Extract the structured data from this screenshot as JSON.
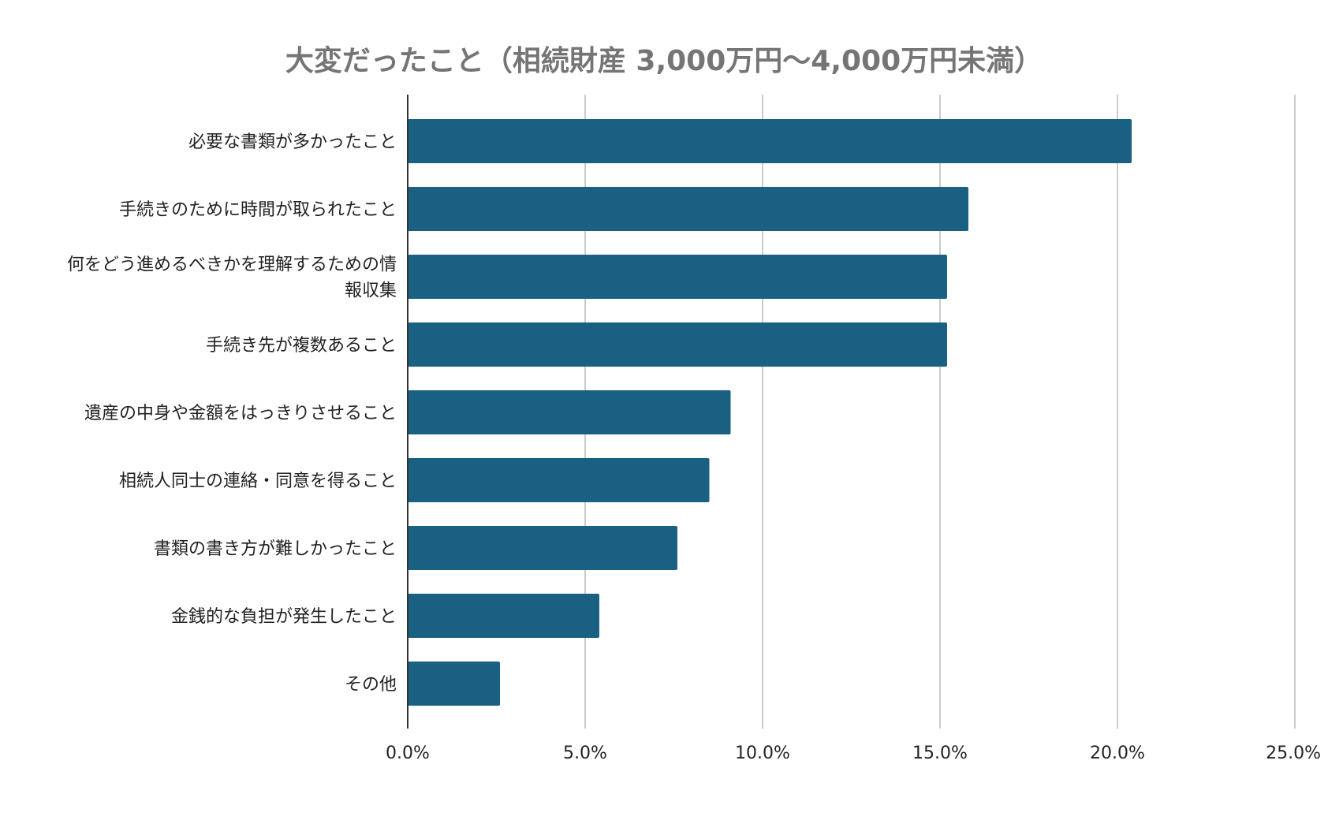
{
  "chart_data": {
    "type": "bar",
    "orientation": "horizontal",
    "title": "大変だったこと（相続財産 3,000万円〜4,000万円未満）",
    "categories": [
      "必要な書類が多かったこと",
      "手続きのために時間が取られたこと",
      "何をどう進めるべきかを理解するための情報収集",
      "手続き先が複数あること",
      "遺産の中身や金額をはっきりさせること",
      "相続人同士の連絡・同意を得ること",
      "書類の書き方が難しかったこと",
      "金銭的な負担が発生したこと",
      "その他"
    ],
    "category_label_lines": [
      [
        "必要な書類が多かったこと"
      ],
      [
        "手続きのために時間が取られたこと"
      ],
      [
        "何をどう進めるべきかを理解するための情",
        "報収集"
      ],
      [
        "手続き先が複数あること"
      ],
      [
        "遺産の中身や金額をはっきりさせること"
      ],
      [
        "相続人同士の連絡・同意を得ること"
      ],
      [
        "書類の書き方が難しかったこと"
      ],
      [
        "金銭的な負担が発生したこと"
      ],
      [
        "その他"
      ]
    ],
    "values": [
      20.4,
      15.8,
      15.2,
      15.2,
      9.1,
      8.5,
      7.6,
      5.4,
      2.6
    ],
    "xlim": [
      0,
      25
    ],
    "xticks": [
      0,
      5,
      10,
      15,
      20,
      25
    ],
    "xtick_labels": [
      "0.0%",
      "5.0%",
      "10.0%",
      "15.0%",
      "20.0%",
      "25.0%"
    ],
    "xlabel": "",
    "ylabel": "",
    "grid": true,
    "legend": "none",
    "bar_color": "#1a6083",
    "grid_color": "#cccccc",
    "title_color": "#757575"
  }
}
